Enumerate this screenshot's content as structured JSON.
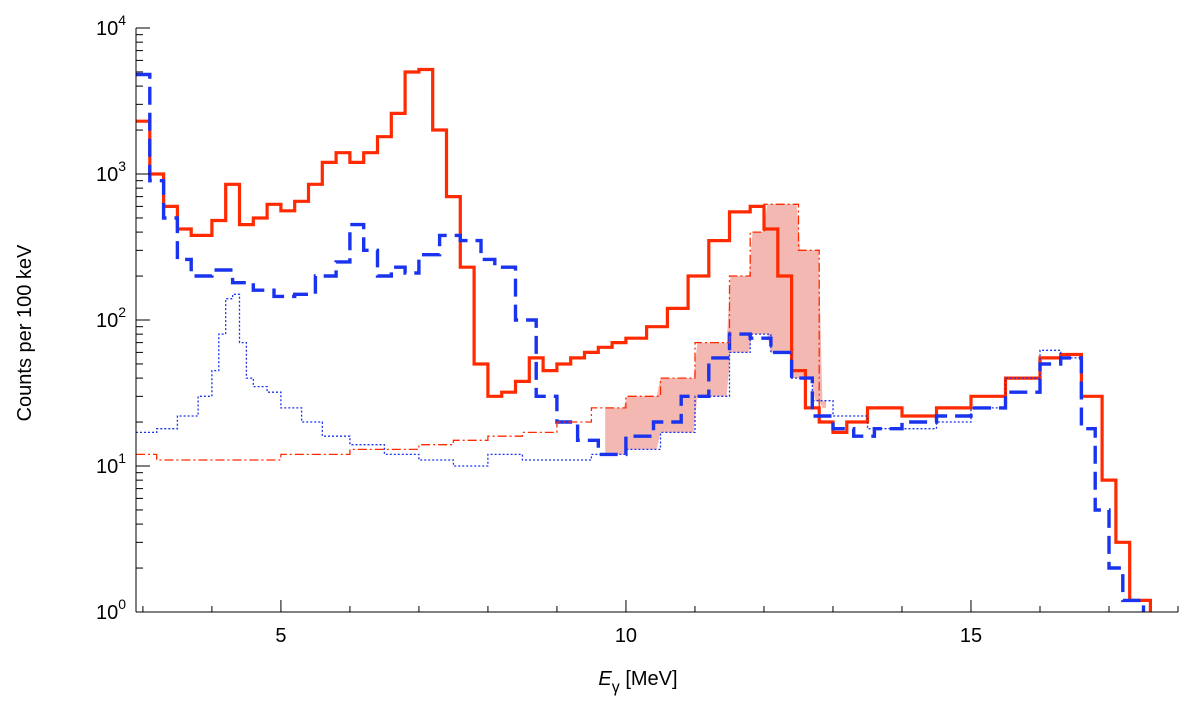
{
  "chart_data": {
    "type": "line",
    "title": "",
    "xlabel": "E",
    "xlabel_sub": "γ",
    "xlabel_unit": " [MeV]",
    "ylabel": "Counts per 100 keV",
    "xlim": [
      2.9,
      18.0
    ],
    "ylim": [
      1,
      10000
    ],
    "yscale": "log",
    "grid": false,
    "x_ticks": [
      5,
      10,
      15
    ],
    "x_tick_labels": [
      "5",
      "10",
      "15"
    ],
    "y_ticks": [
      1,
      10,
      100,
      1000,
      10000
    ],
    "y_tick_labels": [
      {
        "base": "10",
        "exp": "0"
      },
      {
        "base": "10",
        "exp": "1"
      },
      {
        "base": "10",
        "exp": "2"
      },
      {
        "base": "10",
        "exp": "3"
      },
      {
        "base": "10",
        "exp": "4"
      }
    ],
    "colors": {
      "red": "#ff2a00",
      "blue": "#1a33ee",
      "fill": "#f4b8b3"
    },
    "series": [
      {
        "style": "red-solid-thick",
        "x": [
          2.9,
          3.1,
          3.3,
          3.5,
          3.7,
          4.0,
          4.2,
          4.4,
          4.6,
          4.8,
          5.0,
          5.2,
          5.4,
          5.6,
          5.8,
          6.0,
          6.2,
          6.4,
          6.6,
          6.8,
          7.0,
          7.2,
          7.4,
          7.6,
          7.8,
          8.0,
          8.2,
          8.4,
          8.6,
          8.8,
          9.0,
          9.2,
          9.4,
          9.6,
          9.8,
          10.0,
          10.3,
          10.6,
          10.9,
          11.2,
          11.5,
          11.8,
          12.0,
          12.2,
          12.4,
          12.6,
          12.8,
          13.0,
          13.2,
          13.5,
          14.0,
          14.5,
          15.0,
          15.5,
          16.0,
          16.3,
          16.6,
          16.9,
          17.1,
          17.3,
          17.6
        ],
        "y": [
          2300,
          1000,
          600,
          420,
          380,
          480,
          850,
          450,
          500,
          620,
          560,
          650,
          850,
          1200,
          1400,
          1200,
          1400,
          1800,
          2600,
          5000,
          5200,
          2000,
          700,
          230,
          50,
          30,
          32,
          38,
          55,
          45,
          50,
          55,
          60,
          65,
          70,
          75,
          90,
          120,
          200,
          350,
          550,
          600,
          420,
          200,
          45,
          25,
          20,
          17,
          20,
          25,
          22,
          25,
          30,
          40,
          55,
          58,
          30,
          8,
          3,
          1.2,
          1.0
        ]
      },
      {
        "style": "blue-dashed-thick",
        "x": [
          2.9,
          3.1,
          3.3,
          3.5,
          3.7,
          4.0,
          4.3,
          4.6,
          4.9,
          5.2,
          5.5,
          5.8,
          6.0,
          6.2,
          6.4,
          6.6,
          6.8,
          7.0,
          7.3,
          7.6,
          7.9,
          8.1,
          8.4,
          8.7,
          9.0,
          9.3,
          9.6,
          10.0,
          10.4,
          10.8,
          11.2,
          11.5,
          11.8,
          12.1,
          12.4,
          12.7,
          13.0,
          13.3,
          13.6,
          14.0,
          14.5,
          15.0,
          15.5,
          16.0,
          16.3,
          16.6,
          16.8,
          17.0,
          17.2,
          17.5
        ],
        "y": [
          4800,
          900,
          500,
          260,
          200,
          220,
          180,
          160,
          145,
          150,
          200,
          250,
          450,
          300,
          200,
          230,
          210,
          280,
          380,
          350,
          260,
          230,
          100,
          30,
          20,
          15,
          12,
          16,
          20,
          30,
          55,
          80,
          75,
          60,
          40,
          22,
          18,
          16,
          18,
          20,
          22,
          25,
          32,
          50,
          55,
          18,
          5,
          2,
          1.2,
          1.0
        ]
      },
      {
        "style": "blue-dotted-thin",
        "x": [
          2.9,
          3.2,
          3.5,
          3.8,
          4.0,
          4.1,
          4.2,
          4.3,
          4.4,
          4.5,
          4.6,
          4.8,
          5.0,
          5.3,
          5.6,
          6.0,
          6.5,
          7.0,
          7.5,
          8.0,
          8.5,
          9.0,
          9.5,
          10.0,
          10.5,
          11.0,
          11.5,
          11.8,
          12.1,
          12.4,
          12.7,
          13.0,
          13.5,
          14.0,
          14.5,
          15.0,
          15.5,
          16.0,
          16.3,
          16.6
        ],
        "y": [
          17,
          18,
          22,
          30,
          45,
          80,
          140,
          150,
          70,
          40,
          35,
          32,
          25,
          20,
          16,
          14,
          12,
          11,
          10,
          12,
          11,
          11,
          12,
          13,
          17,
          30,
          60,
          80,
          60,
          40,
          28,
          22,
          18,
          18,
          20,
          25,
          40,
          62,
          55,
          45
        ]
      },
      {
        "style": "red-dashdot-thin",
        "x": [
          2.9,
          3.2,
          3.6,
          4.0,
          4.5,
          5.0,
          5.5,
          6.0,
          6.5,
          7.0,
          7.5,
          8.0,
          8.5,
          9.0,
          9.5,
          10.0,
          10.5,
          11.0,
          11.5,
          11.8,
          12.0,
          12.2,
          12.5,
          12.8
        ],
        "y": [
          12,
          11,
          11,
          11,
          11,
          12,
          12,
          13,
          13,
          14,
          15,
          16,
          17,
          20,
          25,
          30,
          40,
          70,
          200,
          400,
          620,
          620,
          300,
          25
        ]
      }
    ],
    "shaded_region": {
      "x_start": 9.7,
      "x_end": 12.9,
      "upper": "red-dashdot-thin",
      "lower": "blue-dotted-thin"
    }
  }
}
